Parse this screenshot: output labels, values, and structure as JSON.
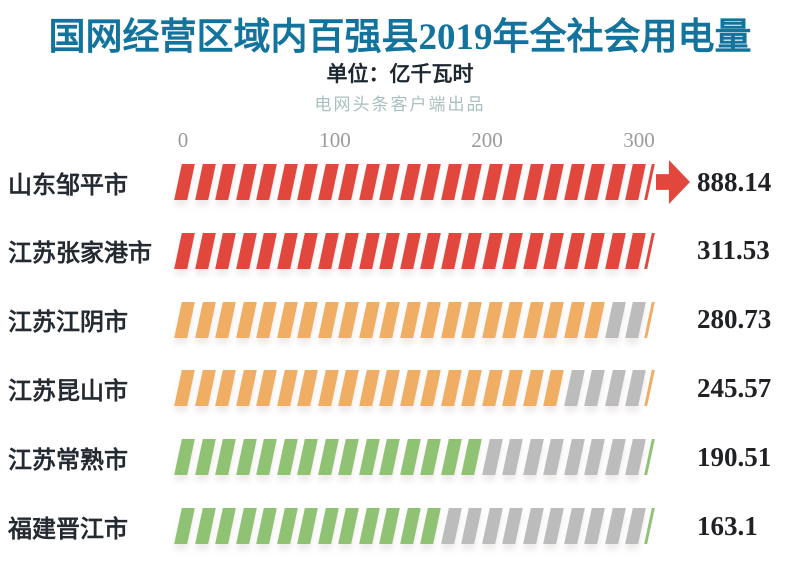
{
  "page": {
    "background": "#ffffff"
  },
  "header": {
    "title": "国网经营区域内百强县2019年全社会用电量",
    "title_color": "#12749c",
    "unit_label": "单位：亿千瓦时",
    "credit": "电网头条客户端出品"
  },
  "chart_data": {
    "type": "bar",
    "orientation": "horizontal",
    "style": "hatched-segment-bars",
    "title": "国网经营区域内百强县2019年全社会用电量",
    "unit": "亿千瓦时",
    "xticks": [
      "0",
      "100",
      "200",
      "300"
    ],
    "xtick_values": [
      0,
      100,
      200,
      300
    ],
    "xlim": [
      0,
      305
    ],
    "grid": false,
    "categories": [
      "山东邹平市",
      "江苏张家港市",
      "江苏江阴市",
      "江苏昆山市",
      "江苏常熟市",
      "福建晋江市"
    ],
    "values": [
      888.14,
      311.53,
      280.73,
      245.57,
      190.51,
      163.1
    ],
    "value_labels": [
      "888.14",
      "311.53",
      "280.73",
      "245.57",
      "190.51",
      "163.1"
    ],
    "bar_colors": [
      "#e2473e",
      "#e2473e",
      "#f0ae64",
      "#f0ae64",
      "#90c274",
      "#90c274"
    ],
    "remainder_color": "#bcbcbc",
    "axis_tick_color": "#9b9b9b",
    "label_color": "#232a31",
    "value_color": "#1f2125",
    "overflow_arrow_rows": [
      0
    ]
  }
}
